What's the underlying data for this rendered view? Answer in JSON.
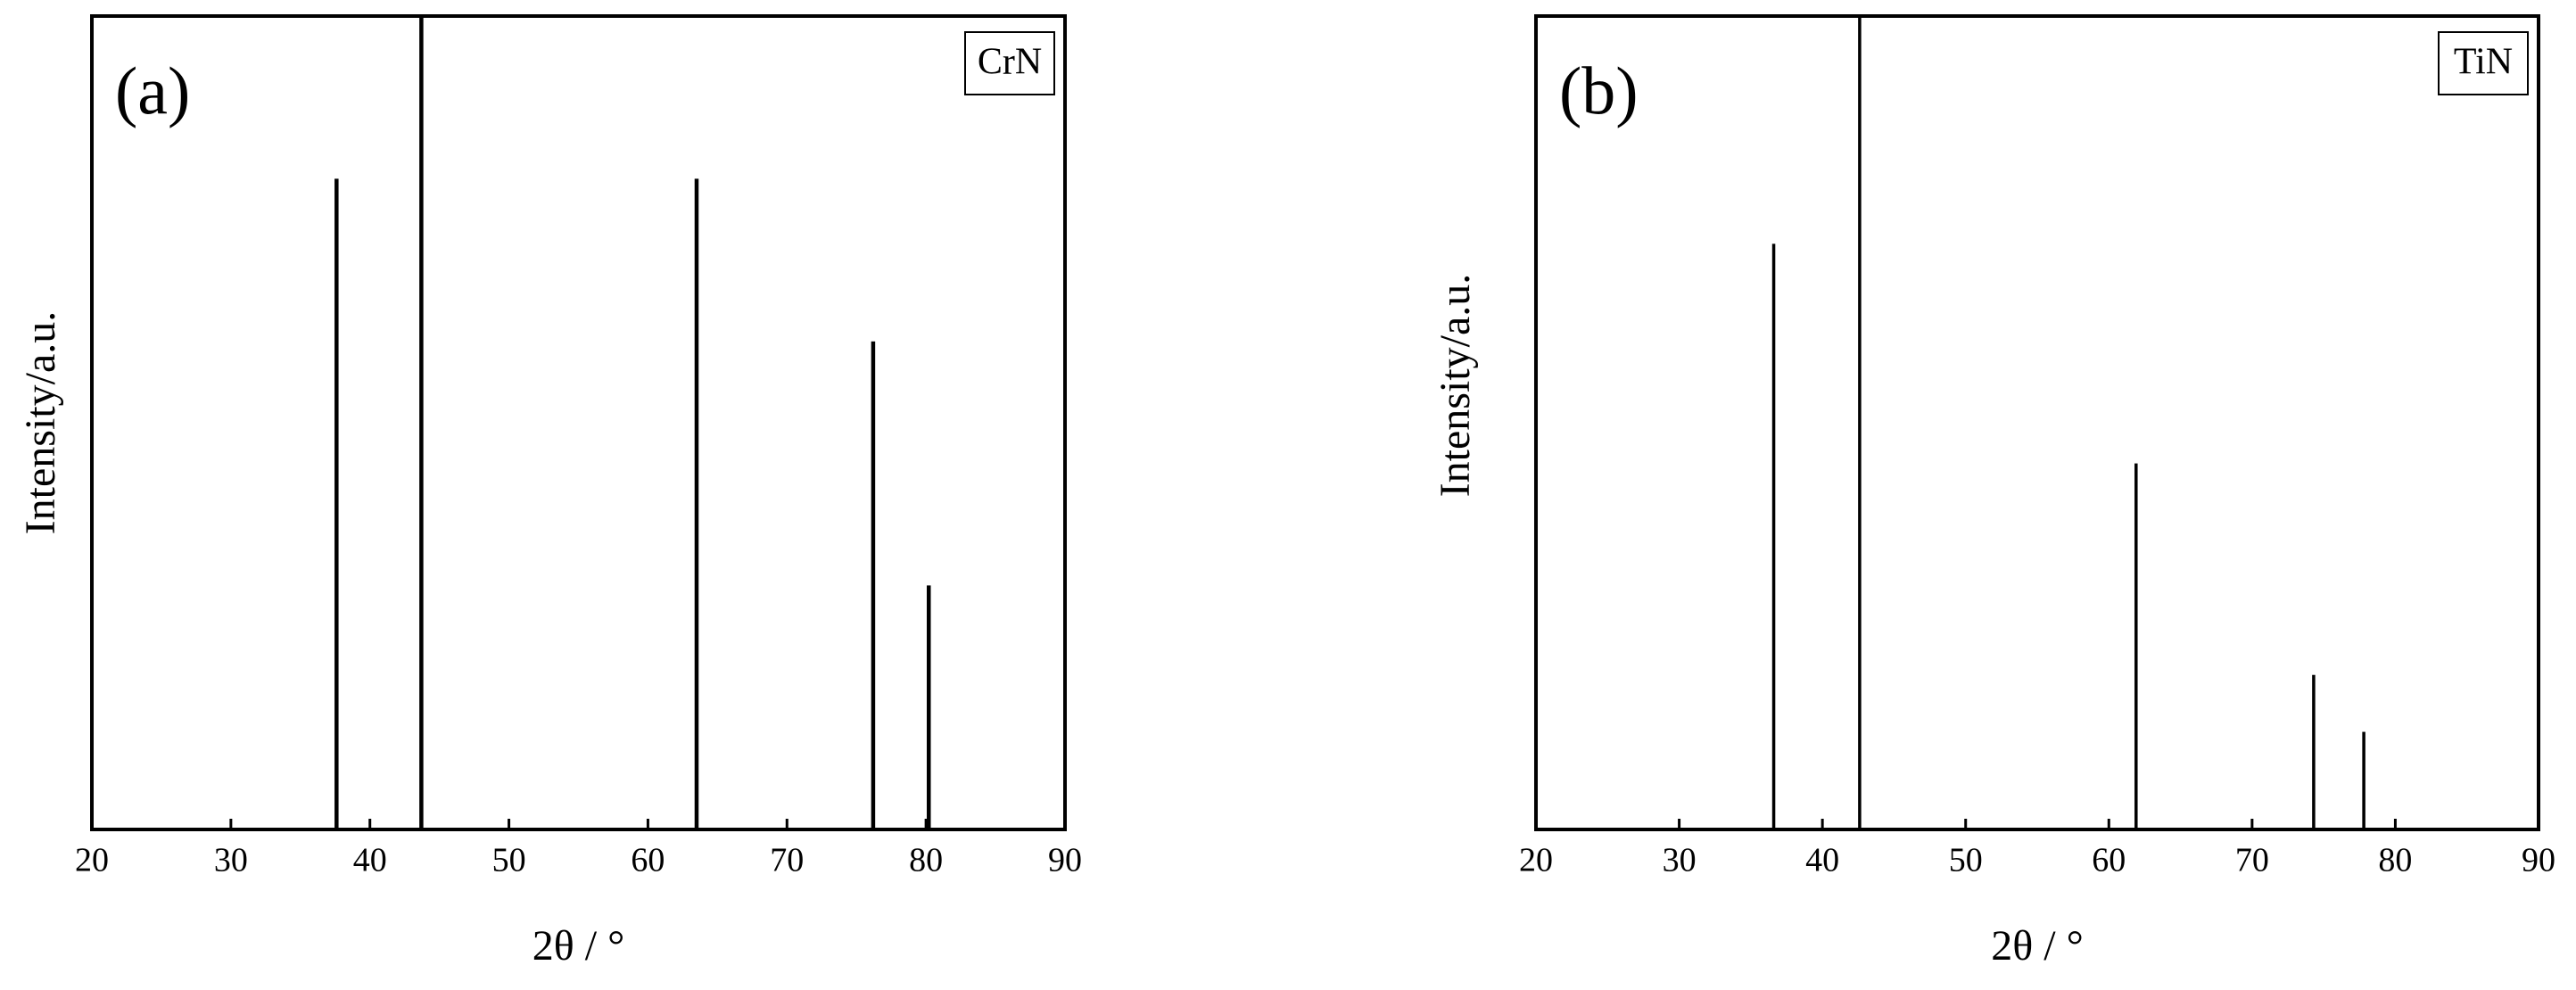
{
  "chart_data": [
    {
      "type": "stick",
      "panel_label": "(a)",
      "xlabel": "2θ / °",
      "ylabel": "Intensity/a.u.",
      "x": [
        37.6,
        43.7,
        63.5,
        76.2,
        80.2
      ],
      "series": [
        {
          "name": "CrN",
          "color": "#000000",
          "values": [
            80,
            100,
            80,
            60,
            30
          ]
        }
      ],
      "xlim": [
        20,
        90
      ],
      "xticks": [
        20,
        30,
        40,
        50,
        60,
        70,
        80,
        90
      ],
      "ylim": [
        0,
        100
      ]
    },
    {
      "type": "stick",
      "panel_label": "(b)",
      "xlabel": "2θ / °",
      "ylabel": "Intensity/a.u.",
      "x": [
        36.6,
        42.6,
        61.9,
        74.3,
        77.8
      ],
      "series": [
        {
          "name": "TiN",
          "color": "#000000",
          "values": [
            72,
            100,
            45,
            19,
            12
          ]
        }
      ],
      "xlim": [
        20,
        90
      ],
      "xticks": [
        20,
        30,
        40,
        50,
        60,
        70,
        80,
        90
      ],
      "ylim": [
        0,
        100
      ]
    }
  ]
}
